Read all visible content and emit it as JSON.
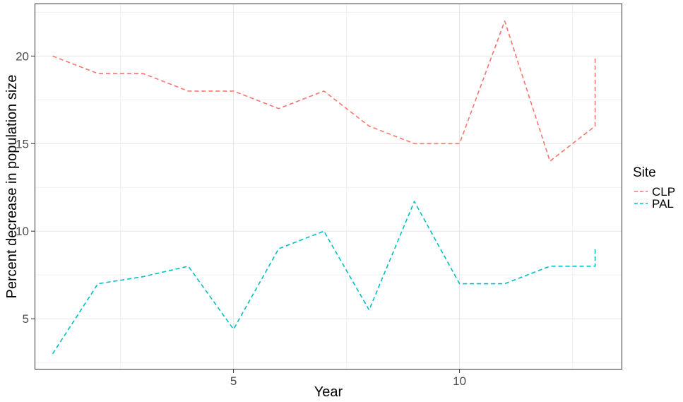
{
  "chart_data": {
    "type": "line",
    "xlabel": "Year",
    "ylabel": "Percent decrease in population size",
    "x_ticks": [
      5,
      10
    ],
    "y_ticks": [
      5,
      10,
      15,
      20
    ],
    "xlim": [
      0.6,
      13.6
    ],
    "ylim": [
      2.1,
      23
    ],
    "grid": true,
    "line_style": "dashed",
    "legend": {
      "title": "Site",
      "placement": "right"
    },
    "series": [
      {
        "name": "CLP",
        "color": "#F8766D",
        "x": [
          1,
          2,
          3,
          4,
          5,
          6,
          7,
          8,
          9,
          10,
          11,
          12,
          13,
          13
        ],
        "y": [
          20,
          19,
          19,
          18,
          18,
          17,
          18,
          16,
          15,
          15,
          22,
          14,
          16,
          20
        ]
      },
      {
        "name": "PAL",
        "color": "#00BFC4",
        "x": [
          1,
          2,
          3,
          4,
          5,
          6,
          7,
          8,
          9,
          10,
          11,
          12,
          13,
          13
        ],
        "y": [
          3,
          7,
          7.4,
          8,
          4.4,
          9,
          10,
          5.5,
          11.7,
          7,
          7,
          8,
          8,
          9
        ]
      }
    ]
  }
}
